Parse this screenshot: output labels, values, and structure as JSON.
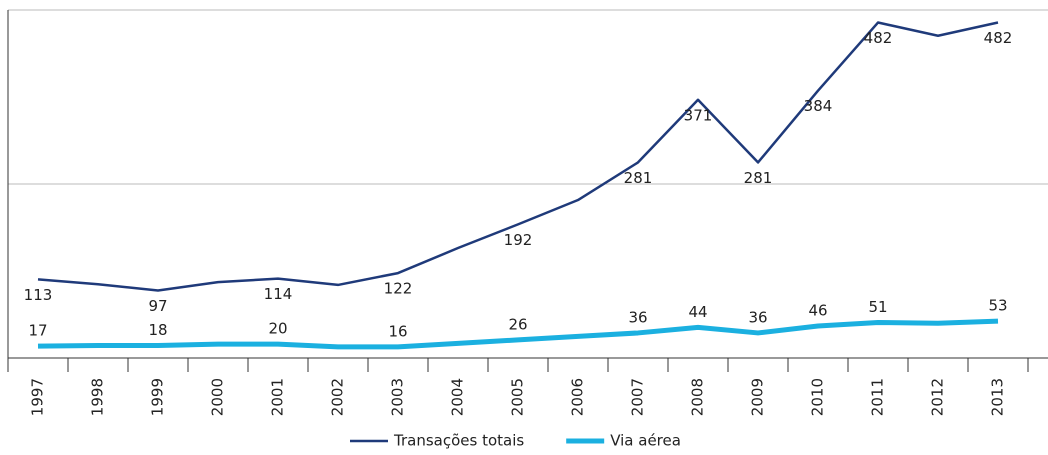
{
  "chart_data": {
    "type": "line",
    "categories": [
      "1997",
      "1998",
      "1999",
      "2000",
      "2001",
      "2002",
      "2003",
      "2004",
      "2005",
      "2006",
      "2007",
      "2008",
      "2009",
      "2010",
      "2011",
      "2012",
      "2013"
    ],
    "series": [
      {
        "name": "Transações totais",
        "color": "#1f3a7a",
        "width": 2.5,
        "label_pos": "below",
        "values": [
          113,
          106,
          97,
          109,
          114,
          105,
          122,
          158,
          192,
          227,
          281,
          371,
          281,
          384,
          482,
          463,
          482
        ],
        "value_labels": [
          "113",
          null,
          "97",
          null,
          "114",
          null,
          "122",
          null,
          "192",
          null,
          "281",
          "371",
          "281",
          "384",
          "482",
          null,
          "482"
        ]
      },
      {
        "name": "Via aérea",
        "color": "#1bb0e0",
        "width": 5,
        "label_pos": "above",
        "values": [
          17,
          18,
          18,
          20,
          20,
          16,
          16,
          21,
          26,
          31,
          36,
          44,
          36,
          46,
          51,
          50,
          53
        ],
        "value_labels": [
          "17",
          null,
          "18",
          null,
          "20",
          null,
          "16",
          null,
          "26",
          null,
          "36",
          "44",
          "36",
          "46",
          "51",
          null,
          "53"
        ]
      }
    ],
    "ylim": [
      0,
      500
    ],
    "yticks": [
      0,
      250,
      500
    ],
    "grid": true
  }
}
